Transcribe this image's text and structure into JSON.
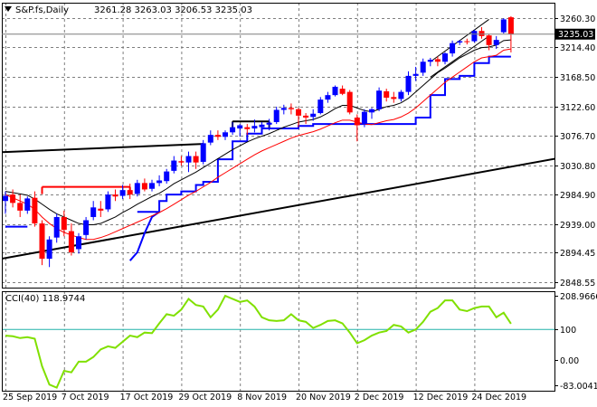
{
  "header": {
    "symbol": "S&P.fs,Daily",
    "ohlc": "3261.28 3263.03 3206.53 3235.03",
    "arrow_icon": "triangle-down-icon"
  },
  "colors": {
    "background": "#ffffff",
    "frame": "#000000",
    "grid": "#7f7f7f",
    "bull": "#0000ff",
    "bear": "#ff0000",
    "ma_fast": "#000000",
    "ma_slow": "#ff0000",
    "support": "#0000ff",
    "trendline": "#000000",
    "cci": "#80e000",
    "cci_level": "#20b2aa",
    "price_marker_bg": "#000000",
    "price_marker_text": "#ffffff"
  },
  "chart_data": {
    "type": "candlestick",
    "title": "S&P.fs,Daily",
    "price_axis": {
      "ylim": [
        2840,
        3284
      ],
      "ticks": [
        3260.3,
        3214.4,
        3168.5,
        3122.6,
        3076.7,
        3030.8,
        2984.9,
        2939.0,
        2894.45,
        2848.55
      ],
      "tick_labels": [
        "3260.30",
        "3214.40",
        "3168.50",
        "3122.60",
        "3076.70",
        "3030.80",
        "2984.90",
        "2939.00",
        "2894.45",
        "2848.55"
      ],
      "current_price": 3235.03,
      "current_price_label": "3235.03"
    },
    "x_axis": {
      "tick_labels": [
        "25 Sep 2019",
        "7 Oct 2019",
        "17 Oct 2019",
        "29 Oct 2019",
        "8 Nov 2019",
        "20 Nov 2019",
        "2 Dec 2019",
        "12 Dec 2019",
        "24 Dec 2019"
      ],
      "tick_bar_index": [
        0,
        8,
        16,
        24,
        32,
        40,
        48,
        56,
        64
      ]
    },
    "candles": [
      {
        "date": "25 Sep 2019",
        "o": 2975,
        "h": 2990,
        "l": 2955,
        "c": 2983
      },
      {
        "date": "26 Sep 2019",
        "o": 2985,
        "h": 2993,
        "l": 2965,
        "c": 2972
      },
      {
        "date": "27 Sep 2019",
        "o": 2972,
        "h": 2985,
        "l": 2950,
        "c": 2960
      },
      {
        "date": "30 Sep 2019",
        "o": 2960,
        "h": 2982,
        "l": 2955,
        "c": 2979
      },
      {
        "date": "1 Oct 2019",
        "o": 2980,
        "h": 2990,
        "l": 2935,
        "c": 2940
      },
      {
        "date": "2 Oct 2019",
        "o": 2940,
        "h": 2945,
        "l": 2875,
        "c": 2885
      },
      {
        "date": "3 Oct 2019",
        "o": 2885,
        "h": 2920,
        "l": 2872,
        "c": 2915
      },
      {
        "date": "4 Oct 2019",
        "o": 2918,
        "h": 2955,
        "l": 2910,
        "c": 2950
      },
      {
        "date": "7 Oct 2019",
        "o": 2950,
        "h": 2960,
        "l": 2920,
        "c": 2930
      },
      {
        "date": "8 Oct 2019",
        "o": 2928,
        "h": 2940,
        "l": 2890,
        "c": 2895
      },
      {
        "date": "9 Oct 2019",
        "o": 2900,
        "h": 2925,
        "l": 2893,
        "c": 2920
      },
      {
        "date": "10 Oct 2019",
        "o": 2922,
        "h": 2950,
        "l": 2915,
        "c": 2945
      },
      {
        "date": "11 Oct 2019",
        "o": 2950,
        "h": 2975,
        "l": 2945,
        "c": 2965
      },
      {
        "date": "14 Oct 2019",
        "o": 2963,
        "h": 2975,
        "l": 2950,
        "c": 2960
      },
      {
        "date": "15 Oct 2019",
        "o": 2962,
        "h": 2990,
        "l": 2958,
        "c": 2985
      },
      {
        "date": "16 Oct 2019",
        "o": 2985,
        "h": 2993,
        "l": 2975,
        "c": 2982
      },
      {
        "date": "17 Oct 2019",
        "o": 2983,
        "h": 3000,
        "l": 2978,
        "c": 2992
      },
      {
        "date": "18 Oct 2019",
        "o": 2992,
        "h": 3002,
        "l": 2978,
        "c": 2985
      },
      {
        "date": "21 Oct 2019",
        "o": 2986,
        "h": 3008,
        "l": 2982,
        "c": 3003
      },
      {
        "date": "22 Oct 2019",
        "o": 3003,
        "h": 3010,
        "l": 2990,
        "c": 2993
      },
      {
        "date": "23 Oct 2019",
        "o": 2994,
        "h": 3008,
        "l": 2990,
        "c": 3003
      },
      {
        "date": "24 Oct 2019",
        "o": 3003,
        "h": 3015,
        "l": 2998,
        "c": 3007
      },
      {
        "date": "25 Oct 2019",
        "o": 3006,
        "h": 3025,
        "l": 3002,
        "c": 3021
      },
      {
        "date": "28 Oct 2019",
        "o": 3022,
        "h": 3045,
        "l": 3018,
        "c": 3038
      },
      {
        "date": "29 Oct 2019",
        "o": 3037,
        "h": 3045,
        "l": 3030,
        "c": 3035
      },
      {
        "date": "30 Oct 2019",
        "o": 3035,
        "h": 3052,
        "l": 3020,
        "c": 3045
      },
      {
        "date": "31 Oct 2019",
        "o": 3045,
        "h": 3052,
        "l": 3025,
        "c": 3035
      },
      {
        "date": "1 Nov 2019",
        "o": 3036,
        "h": 3070,
        "l": 3032,
        "c": 3065
      },
      {
        "date": "4 Nov 2019",
        "o": 3066,
        "h": 3085,
        "l": 3062,
        "c": 3078
      },
      {
        "date": "5 Nov 2019",
        "o": 3078,
        "h": 3085,
        "l": 3070,
        "c": 3075
      },
      {
        "date": "6 Nov 2019",
        "o": 3075,
        "h": 3085,
        "l": 3070,
        "c": 3082
      },
      {
        "date": "7 Nov 2019",
        "o": 3082,
        "h": 3098,
        "l": 3078,
        "c": 3090
      },
      {
        "date": "8 Nov 2019",
        "o": 3088,
        "h": 3095,
        "l": 3075,
        "c": 3093
      },
      {
        "date": "11 Nov 2019",
        "o": 3090,
        "h": 3095,
        "l": 3078,
        "c": 3087
      },
      {
        "date": "12 Nov 2019",
        "o": 3088,
        "h": 3102,
        "l": 3082,
        "c": 3092
      },
      {
        "date": "13 Nov 2019",
        "o": 3090,
        "h": 3098,
        "l": 3080,
        "c": 3094
      },
      {
        "date": "14 Nov 2019",
        "o": 3094,
        "h": 3103,
        "l": 3085,
        "c": 3097
      },
      {
        "date": "15 Nov 2019",
        "o": 3098,
        "h": 3122,
        "l": 3095,
        "c": 3117
      },
      {
        "date": "18 Nov 2019",
        "o": 3117,
        "h": 3125,
        "l": 3110,
        "c": 3120
      },
      {
        "date": "19 Nov 2019",
        "o": 3120,
        "h": 3127,
        "l": 3110,
        "c": 3118
      },
      {
        "date": "20 Nov 2019",
        "o": 3118,
        "h": 3120,
        "l": 3090,
        "c": 3108
      },
      {
        "date": "21 Nov 2019",
        "o": 3108,
        "h": 3112,
        "l": 3095,
        "c": 3105
      },
      {
        "date": "22 Nov 2019",
        "o": 3106,
        "h": 3118,
        "l": 3100,
        "c": 3111
      },
      {
        "date": "25 Nov 2019",
        "o": 3112,
        "h": 3137,
        "l": 3110,
        "c": 3133
      },
      {
        "date": "26 Nov 2019",
        "o": 3133,
        "h": 3145,
        "l": 3128,
        "c": 3140
      },
      {
        "date": "27 Nov 2019",
        "o": 3140,
        "h": 3155,
        "l": 3138,
        "c": 3153
      },
      {
        "date": "29 Nov 2019",
        "o": 3150,
        "h": 3155,
        "l": 3140,
        "c": 3142
      },
      {
        "date": "2 Dec 2019",
        "o": 3145,
        "h": 3148,
        "l": 3110,
        "c": 3113
      },
      {
        "date": "3 Dec 2019",
        "o": 3105,
        "h": 3110,
        "l": 3068,
        "c": 3093
      },
      {
        "date": "4 Dec 2019",
        "o": 3095,
        "h": 3118,
        "l": 3090,
        "c": 3114
      },
      {
        "date": "5 Dec 2019",
        "o": 3113,
        "h": 3120,
        "l": 3103,
        "c": 3118
      },
      {
        "date": "6 Dec 2019",
        "o": 3118,
        "h": 3152,
        "l": 3115,
        "c": 3147
      },
      {
        "date": "9 Dec 2019",
        "o": 3146,
        "h": 3150,
        "l": 3130,
        "c": 3136
      },
      {
        "date": "10 Dec 2019",
        "o": 3137,
        "h": 3145,
        "l": 3128,
        "c": 3134
      },
      {
        "date": "11 Dec 2019",
        "o": 3134,
        "h": 3148,
        "l": 3130,
        "c": 3145
      },
      {
        "date": "12 Dec 2019",
        "o": 3145,
        "h": 3177,
        "l": 3140,
        "c": 3170
      },
      {
        "date": "13 Dec 2019",
        "o": 3170,
        "h": 3184,
        "l": 3162,
        "c": 3173
      },
      {
        "date": "16 Dec 2019",
        "o": 3175,
        "h": 3197,
        "l": 3170,
        "c": 3192
      },
      {
        "date": "17 Dec 2019",
        "o": 3192,
        "h": 3198,
        "l": 3185,
        "c": 3195
      },
      {
        "date": "18 Dec 2019",
        "o": 3196,
        "h": 3200,
        "l": 3185,
        "c": 3192
      },
      {
        "date": "19 Dec 2019",
        "o": 3192,
        "h": 3207,
        "l": 3188,
        "c": 3205
      },
      {
        "date": "20 Dec 2019",
        "o": 3205,
        "h": 3225,
        "l": 3200,
        "c": 3221
      },
      {
        "date": "23 Dec 2019",
        "o": 3222,
        "h": 3226,
        "l": 3218,
        "c": 3224
      },
      {
        "date": "24 Dec 2019",
        "o": 3224,
        "h": 3228,
        "l": 3219,
        "c": 3223
      },
      {
        "date": "26 Dec 2019",
        "o": 3224,
        "h": 3242,
        "l": 3222,
        "c": 3240
      },
      {
        "date": "27 Dec 2019",
        "o": 3240,
        "h": 3246,
        "l": 3228,
        "c": 3232
      },
      {
        "date": "30 Dec 2019",
        "o": 3233,
        "h": 3235,
        "l": 3210,
        "c": 3218
      },
      {
        "date": "31 Dec 2019",
        "o": 3218,
        "h": 3232,
        "l": 3212,
        "c": 3226
      },
      {
        "date": "2 Jan 2020",
        "o": 3238,
        "h": 3260,
        "l": 3236,
        "c": 3258
      },
      {
        "date": "3 Jan 2020",
        "o": 3261.28,
        "h": 3263.03,
        "l": 3206.53,
        "c": 3235.03
      }
    ],
    "overlays": [
      {
        "start": 0,
        "values": [
          2990,
          2988,
          2986,
          2984,
          2978,
          2970,
          2962,
          2955,
          2950,
          2945,
          2940,
          2938,
          2938,
          2940,
          2945,
          2950,
          2957,
          2963,
          2970,
          2976,
          2982,
          2987,
          2994,
          3002,
          3008,
          3014,
          3020,
          3027,
          3034,
          3041,
          3048,
          3055,
          3061,
          3067,
          3072,
          3076,
          3080,
          3085,
          3090,
          3094,
          3098,
          3100,
          3102,
          3106,
          3112,
          3119,
          3124,
          3124,
          3120,
          3116,
          3114,
          3118,
          3122,
          3124,
          3128,
          3135,
          3145,
          3155,
          3165,
          3175,
          3182,
          3190,
          3198,
          3204,
          3210,
          3214,
          3215,
          3218,
          3225,
          3226
        ]
      },
      {
        "start": 0,
        "values": [
          2985,
          2980,
          2975,
          2970,
          2962,
          2950,
          2940,
          2932,
          2926,
          2922,
          2918,
          2915,
          2915,
          2918,
          2922,
          2927,
          2932,
          2937,
          2942,
          2947,
          2952,
          2957,
          2963,
          2970,
          2977,
          2984,
          2990,
          2997,
          3004,
          3012,
          3019,
          3026,
          3033,
          3040,
          3047,
          3053,
          3058,
          3063,
          3068,
          3073,
          3077,
          3080,
          3083,
          3087,
          3092,
          3097,
          3101,
          3101,
          3098,
          3095,
          3094,
          3097,
          3100,
          3102,
          3106,
          3112,
          3120,
          3130,
          3140,
          3150,
          3160,
          3168,
          3176,
          3184,
          3192,
          3198,
          3200,
          3202,
          3210,
          3212
        ]
      }
    ],
    "support_line": [
      {
        "from": 0,
        "to": 3,
        "value": 2935
      },
      {
        "from": 18,
        "to": 21,
        "value": 2958
      },
      {
        "from": 21,
        "to": 22,
        "value": 2975
      },
      {
        "from": 22,
        "to": 24,
        "value": 2985
      },
      {
        "from": 24,
        "to": 26,
        "value": 2990
      },
      {
        "from": 26,
        "to": 27,
        "value": 3000
      },
      {
        "from": 27,
        "to": 29,
        "value": 3005
      },
      {
        "from": 29,
        "to": 31,
        "value": 3040
      },
      {
        "from": 31,
        "to": 33,
        "value": 3068
      },
      {
        "from": 33,
        "to": 35,
        "value": 3080
      },
      {
        "from": 35,
        "to": 40,
        "value": 3088
      },
      {
        "from": 40,
        "to": 42,
        "value": 3092
      },
      {
        "from": 42,
        "to": 56,
        "value": 3095
      },
      {
        "from": 56,
        "to": 58,
        "value": 3105
      },
      {
        "from": 58,
        "to": 60,
        "value": 3140
      },
      {
        "from": 60,
        "to": 62,
        "value": 3165
      },
      {
        "from": 62,
        "to": 64,
        "value": 3170
      },
      {
        "from": 64,
        "to": 66,
        "value": 3190
      },
      {
        "from": 66,
        "to": 69,
        "value": 3200
      }
    ],
    "support_ramp": [
      [
        17,
        2882
      ],
      [
        18,
        2895
      ],
      [
        19,
        2925
      ],
      [
        20,
        2950
      ],
      [
        21,
        2958
      ]
    ],
    "trendlines": [
      {
        "x1": -0.5,
        "y1": 2885,
        "x2": 79,
        "y2": 3049
      },
      {
        "x1": -0.5,
        "y1": 3051,
        "x2": 27,
        "y2": 3064
      },
      {
        "x1": 58,
        "y1": 3192,
        "x2": 66,
        "y2": 3258
      },
      {
        "x1": 58,
        "y1": 3168,
        "x2": 66,
        "y2": 3232
      }
    ],
    "levels": [
      {
        "from": 5,
        "to": 17,
        "value": 2997
      },
      {
        "from": 31,
        "to": 36,
        "value": 3099
      }
    ],
    "levels_color": [
      "#ff0000",
      "#000000"
    ],
    "cci": {
      "label": "CCI(40) 118.9744",
      "period": 40,
      "current": 118.9744,
      "ylim": [
        -100,
        225
      ],
      "ticks": [
        208.9666,
        100,
        0.0,
        -83.0041
      ],
      "tick_labels": [
        "208.9666",
        "100",
        "0.00",
        "-83.0041"
      ],
      "level": 100,
      "values": [
        80,
        78,
        72,
        75,
        70,
        -20,
        -80,
        -90,
        -35,
        -40,
        -5,
        -5,
        10,
        35,
        45,
        40,
        60,
        80,
        75,
        90,
        88,
        120,
        150,
        145,
        165,
        200,
        180,
        175,
        140,
        165,
        210,
        200,
        190,
        195,
        175,
        140,
        130,
        128,
        130,
        150,
        130,
        125,
        105,
        115,
        128,
        130,
        120,
        90,
        55,
        65,
        80,
        90,
        95,
        115,
        110,
        90,
        100,
        125,
        158,
        170,
        195,
        195,
        165,
        160,
        170,
        175,
        175,
        140,
        155,
        118.9744
      ]
    }
  }
}
